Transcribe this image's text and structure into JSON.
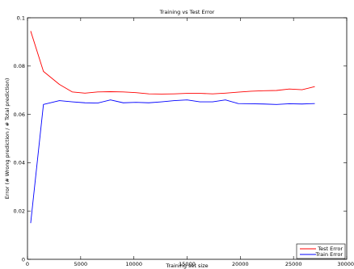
{
  "chart_data": {
    "type": "line",
    "title": "Training vs Test Error",
    "xlabel": "Training set size",
    "ylabel": "Error (# Wrong prediction / # Total prediction)",
    "xlim": [
      0,
      30000
    ],
    "ylim": [
      0,
      0.1
    ],
    "xticks": [
      0,
      5000,
      10000,
      15000,
      20000,
      25000,
      30000
    ],
    "xtick_labels": [
      "0",
      "5000",
      "10000",
      "15000",
      "20000",
      "25000",
      "30000"
    ],
    "yticks": [
      0,
      0.02,
      0.04,
      0.06,
      0.08,
      0.1
    ],
    "ytick_labels": [
      "0",
      "0.02",
      "0.04",
      "0.06",
      "0.08",
      "0.1"
    ],
    "grid": false,
    "legend_position": "bottom-right",
    "x": [
      300,
      1500,
      3000,
      4200,
      5400,
      6600,
      7800,
      9000,
      10200,
      11400,
      12600,
      13800,
      15000,
      16200,
      17400,
      18600,
      19800,
      21000,
      22200,
      23400,
      24600,
      25800,
      27000
    ],
    "series": [
      {
        "name": "Test Error",
        "color": "#ff0000",
        "values": [
          0.0945,
          0.0778,
          0.0724,
          0.0693,
          0.0688,
          0.0693,
          0.0694,
          0.0693,
          0.069,
          0.0685,
          0.0684,
          0.0685,
          0.0687,
          0.0687,
          0.0685,
          0.0688,
          0.0692,
          0.0696,
          0.0698,
          0.0699,
          0.0705,
          0.0702,
          0.0715
        ]
      },
      {
        "name": "Train Error",
        "color": "#0000ff",
        "values": [
          0.015,
          0.0641,
          0.0657,
          0.0652,
          0.0648,
          0.0647,
          0.066,
          0.0648,
          0.065,
          0.0648,
          0.0652,
          0.0657,
          0.066,
          0.0652,
          0.0652,
          0.066,
          0.0645,
          0.0644,
          0.0643,
          0.0641,
          0.0644,
          0.0643,
          0.0645
        ]
      }
    ]
  }
}
